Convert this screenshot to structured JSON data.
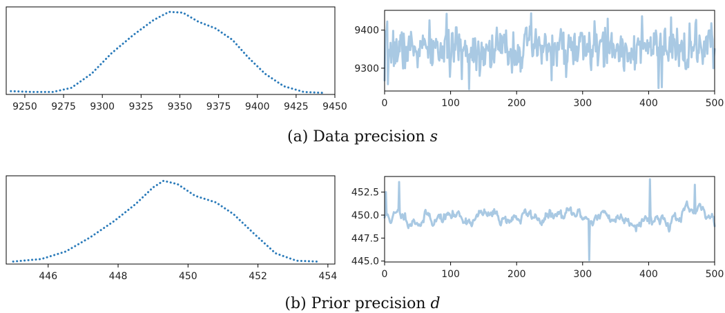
{
  "colors": {
    "density": "#2b7bba",
    "trace": "#a9c9e3",
    "axis": "#000000"
  },
  "chart_data": [
    {
      "id": "s-density",
      "type": "line",
      "line_style": "dotted",
      "xlim": [
        9238,
        9450
      ],
      "x_ticks": [
        9250,
        9275,
        9300,
        9325,
        9350,
        9375,
        9400,
        9425,
        9450
      ],
      "x_tick_labels": [
        "9250",
        "9275",
        "9300",
        "9325",
        "9350",
        "9375",
        "9400",
        "9425",
        "9450"
      ],
      "show_y_ticks": false,
      "ylim": [
        0,
        1.06
      ],
      "x": [
        9241,
        9255,
        9268,
        9280,
        9293,
        9306,
        9320,
        9333,
        9343,
        9352,
        9362,
        9373,
        9384,
        9394,
        9405,
        9417,
        9430,
        9442
      ],
      "y": [
        0.04,
        0.03,
        0.03,
        0.08,
        0.25,
        0.5,
        0.72,
        0.9,
        1.0,
        0.99,
        0.88,
        0.8,
        0.66,
        0.45,
        0.25,
        0.1,
        0.03,
        0.02
      ]
    },
    {
      "id": "s-trace",
      "type": "line",
      "xlim": [
        0,
        500
      ],
      "ylim": [
        9240,
        9452
      ],
      "x_ticks": [
        0,
        100,
        200,
        300,
        400,
        500
      ],
      "x_tick_labels": [
        "0",
        "100",
        "200",
        "300",
        "400",
        "500"
      ],
      "y_ticks": [
        9300,
        9400
      ],
      "y_tick_labels": [
        "9300",
        "9400"
      ],
      "trace": {
        "n": 500,
        "seed": 7,
        "phi": 0.2,
        "center": 9350,
        "sd": 28
      },
      "spikes": [
        [
          0,
          9268
        ],
        [
          5,
          9258
        ],
        [
          128,
          9245
        ],
        [
          222,
          9444
        ],
        [
          338,
          9430
        ],
        [
          415,
          9248
        ],
        [
          420,
          9250
        ],
        [
          495,
          9418
        ],
        [
          498,
          9300
        ]
      ]
    },
    {
      "id": "d-density",
      "type": "line",
      "line_style": "dotted",
      "xlim": [
        444.8,
        454.2
      ],
      "x_ticks": [
        446,
        448,
        450,
        452,
        454
      ],
      "x_tick_labels": [
        "446",
        "448",
        "450",
        "452",
        "454"
      ],
      "show_y_ticks": false,
      "ylim": [
        0,
        1.06
      ],
      "x": [
        445.0,
        445.8,
        446.5,
        447.2,
        447.9,
        448.5,
        449.0,
        449.3,
        449.7,
        450.2,
        450.8,
        451.3,
        451.9,
        452.5,
        453.1,
        453.7
      ],
      "y": [
        0.03,
        0.06,
        0.15,
        0.32,
        0.52,
        0.72,
        0.92,
        1.0,
        0.96,
        0.82,
        0.74,
        0.6,
        0.36,
        0.13,
        0.04,
        0.03
      ]
    },
    {
      "id": "d-trace",
      "type": "line",
      "xlim": [
        0,
        500
      ],
      "ylim": [
        444.9,
        454.2
      ],
      "x_ticks": [
        0,
        100,
        200,
        300,
        400,
        500
      ],
      "x_tick_labels": [
        "0",
        "100",
        "200",
        "300",
        "400",
        "500"
      ],
      "y_ticks": [
        445.0,
        447.5,
        450.0,
        452.5
      ],
      "y_tick_labels": [
        "445.0",
        "447.5",
        "450.0",
        "452.5"
      ],
      "trace": {
        "n": 500,
        "seed": 11,
        "phi": 0.88,
        "center": 449.8,
        "sd": 0.55
      },
      "spikes": [
        [
          2,
          452.5
        ],
        [
          22,
          453.6
        ],
        [
          310,
          445.1
        ],
        [
          402,
          453.9
        ],
        [
          470,
          453.3
        ]
      ]
    }
  ],
  "captions": {
    "a": {
      "text": "(a) Data precision ",
      "symbol": "s"
    },
    "b": {
      "text": "(b) Prior precision ",
      "symbol": "d"
    }
  }
}
